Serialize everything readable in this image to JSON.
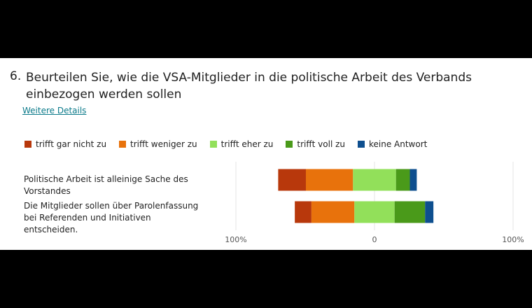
{
  "chart_data": {
    "type": "bar",
    "orientation": "horizontal",
    "diverging": true,
    "question_number": "6.",
    "title": "Beurteilen Sie, wie die VSA-Mitglieder in die politische Arbeit des Verbands einbezogen werden sollen",
    "link_text": "Weitere Details",
    "categories": [
      "Politische Arbeit ist alleinige Sache des Vorstandes",
      "Die Mitglieder sollen über Parolenfassung bei Referenden und Initiativen entscheiden."
    ],
    "series": [
      {
        "name": "trifft gar nicht zu",
        "color": "#b8380c",
        "values": [
          20,
          12
        ]
      },
      {
        "name": "trifft weniger zu",
        "color": "#e8720c",
        "values": [
          34,
          31
        ]
      },
      {
        "name": "trifft eher zu",
        "color": "#92e05a",
        "values": [
          31,
          29
        ]
      },
      {
        "name": "trifft voll zu",
        "color": "#4a9a1a",
        "values": [
          10,
          22
        ]
      },
      {
        "name": "keine Antwort",
        "color": "#0e4f8f",
        "values": [
          5,
          6
        ]
      }
    ],
    "xlim": [
      -100,
      100
    ],
    "xticks": [
      {
        "value": -100,
        "label": "100%"
      },
      0,
      {
        "value": 100,
        "label": "100%"
      }
    ],
    "grid": true
  }
}
